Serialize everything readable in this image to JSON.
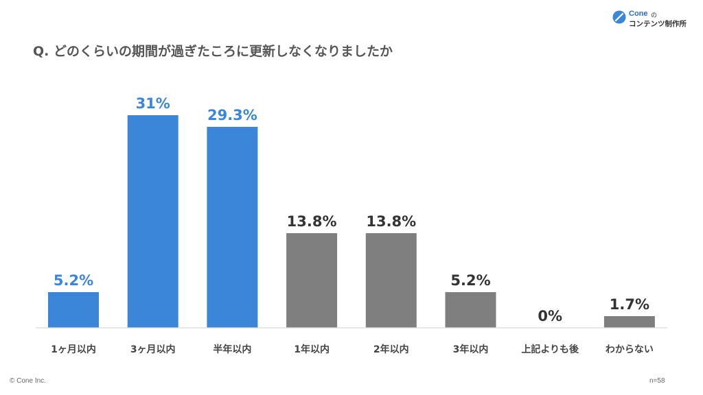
{
  "header": {
    "question": "Q. どのくらいの期間が過ぎたころに更新しなくなりましたか"
  },
  "brand": {
    "name_en": "Cone",
    "name_no": "の",
    "name_jp": "コンテンツ制作所"
  },
  "footer": {
    "copyright": "© Cone Inc.",
    "sample": "n=58"
  },
  "colors": {
    "highlight": "#3b86d8",
    "default": "#7f7f7f",
    "value_highlight": "#3b86d8",
    "value_default": "#333333"
  },
  "chart_data": {
    "type": "bar",
    "title": "",
    "xlabel": "",
    "ylabel": "",
    "ylim": [
      0,
      35
    ],
    "grid": false,
    "categories": [
      "1ヶ月以内",
      "3ヶ月以内",
      "半年以内",
      "1年以内",
      "2年以内",
      "3年以内",
      "上記よりも後",
      "わからない"
    ],
    "values": [
      5.2,
      31,
      29.3,
      13.8,
      13.8,
      5.2,
      0,
      1.7
    ],
    "value_labels": [
      "5.2%",
      "31%",
      "29.3%",
      "13.8%",
      "13.8%",
      "5.2%",
      "0%",
      "1.7%"
    ],
    "highlighted": [
      true,
      true,
      true,
      false,
      false,
      false,
      false,
      false
    ]
  }
}
